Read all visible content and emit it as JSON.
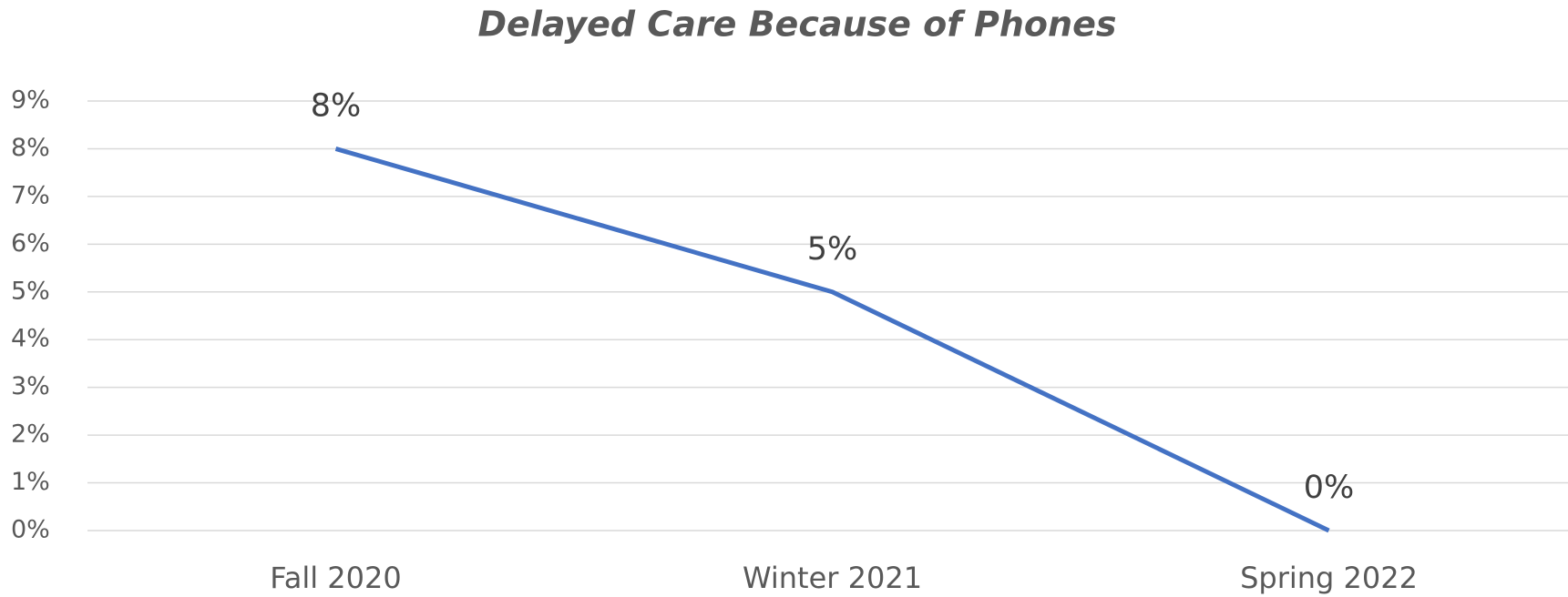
{
  "chart_data": {
    "type": "line",
    "title": "Delayed Care Because of Phones",
    "categories": [
      "Fall 2020",
      "Winter 2021",
      "Spring 2022"
    ],
    "series": [
      {
        "name": "Delayed Care Because of Phones",
        "color": "#4472c4",
        "values": [
          8,
          5,
          0
        ],
        "value_labels": [
          "8%",
          "5%",
          "0%"
        ]
      }
    ],
    "ylim": [
      0,
      9
    ],
    "yticks": [
      {
        "value": 0,
        "label": "0%"
      },
      {
        "value": 1,
        "label": "1%"
      },
      {
        "value": 2,
        "label": "2%"
      },
      {
        "value": 3,
        "label": "3%"
      },
      {
        "value": 4,
        "label": "4%"
      },
      {
        "value": 5,
        "label": "5%"
      },
      {
        "value": 6,
        "label": "6%"
      },
      {
        "value": 7,
        "label": "7%"
      },
      {
        "value": 8,
        "label": "8%"
      },
      {
        "value": 9,
        "label": "9%"
      }
    ],
    "grid": true
  }
}
